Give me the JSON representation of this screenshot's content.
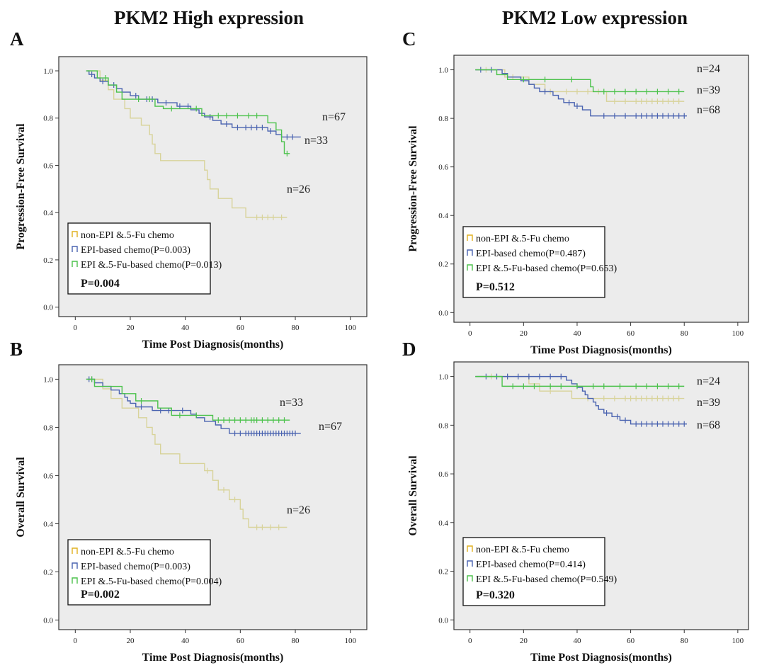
{
  "figure": {
    "column_titles": [
      "PKM2 High expression",
      "PKM2 Low expression"
    ]
  },
  "colors": {
    "non_epi": "#d8d39a",
    "epi": "#4a63b0",
    "epi_5fu": "#4cc24c",
    "legend_icon_non_epi": "#e0b020",
    "plot_bg": "#ececec"
  },
  "chart_data": [
    {
      "panel": "A",
      "type": "line",
      "ylabel": "Progression-Free Survival",
      "xlabel": "Time Post Diagnosis(months)",
      "xlim": [
        -6,
        106
      ],
      "ylim": [
        -0.04,
        1.06
      ],
      "xticks": [
        "0",
        "20",
        "40",
        "60",
        "80",
        "100"
      ],
      "yticks": [
        "0.0",
        "0.2",
        "0.4",
        "0.6",
        "0.8",
        "1.0"
      ],
      "legend": {
        "placement": "bottom-left",
        "entries": [
          "non-EPI &.5-Fu chemo",
          "EPI-based chemo(P=0.003)",
          "EPI &.5-Fu-based chemo(P=0.013)"
        ],
        "p_value": "P=0.004"
      },
      "series": [
        {
          "key": "non_epi",
          "end_label": "n=26",
          "steps": [
            [
              4,
              1.0
            ],
            [
              9,
              0.96
            ],
            [
              12,
              0.92
            ],
            [
              14,
              0.88
            ],
            [
              18,
              0.84
            ],
            [
              20,
              0.8
            ],
            [
              24,
              0.77
            ],
            [
              27,
              0.73
            ],
            [
              28,
              0.69
            ],
            [
              29,
              0.65
            ],
            [
              31,
              0.62
            ],
            [
              47,
              0.58
            ],
            [
              48,
              0.54
            ],
            [
              49,
              0.5
            ],
            [
              52,
              0.46
            ],
            [
              57,
              0.42
            ],
            [
              62,
              0.38
            ]
          ],
          "end": 77,
          "censors": [
            66,
            68,
            70,
            72,
            75
          ]
        },
        {
          "key": "epi",
          "end_label": "n=67",
          "steps": [
            [
              4,
              1.0
            ],
            [
              5,
              0.985
            ],
            [
              7,
              0.97
            ],
            [
              9,
              0.955
            ],
            [
              12,
              0.94
            ],
            [
              15,
              0.925
            ],
            [
              17,
              0.91
            ],
            [
              20,
              0.895
            ],
            [
              23,
              0.88
            ],
            [
              30,
              0.865
            ],
            [
              37,
              0.85
            ],
            [
              42,
              0.835
            ],
            [
              45,
              0.82
            ],
            [
              47,
              0.805
            ],
            [
              50,
              0.79
            ],
            [
              53,
              0.775
            ],
            [
              57,
              0.76
            ],
            [
              70,
              0.745
            ],
            [
              73,
              0.73
            ],
            [
              75,
              0.72
            ]
          ],
          "end": 82,
          "censors": [
            6,
            10,
            14,
            22,
            26,
            28,
            33,
            38,
            41,
            49,
            55,
            59,
            62,
            64,
            66,
            68,
            71,
            77,
            79
          ]
        },
        {
          "key": "epi_5fu",
          "end_label": "n=33",
          "steps": [
            [
              4,
              1.0
            ],
            [
              8,
              0.97
            ],
            [
              12,
              0.94
            ],
            [
              15,
              0.91
            ],
            [
              17,
              0.88
            ],
            [
              29,
              0.85
            ],
            [
              32,
              0.84
            ],
            [
              46,
              0.81
            ],
            [
              70,
              0.78
            ],
            [
              73,
              0.75
            ],
            [
              75,
              0.7
            ],
            [
              76,
              0.65
            ]
          ],
          "end": 78,
          "censors": [
            11,
            23,
            27,
            35,
            44,
            52,
            55,
            59,
            63,
            66,
            77
          ]
        }
      ]
    },
    {
      "panel": "B",
      "type": "line",
      "ylabel": "Overall Survival",
      "xlabel": "Time Post Diagnosis(months)",
      "xlim": [
        -6,
        106
      ],
      "ylim": [
        -0.04,
        1.06
      ],
      "xticks": [
        "0",
        "20",
        "40",
        "60",
        "80",
        "100"
      ],
      "yticks": [
        "0.0",
        "0.2",
        "0.4",
        "0.6",
        "0.8",
        "1.0"
      ],
      "legend": {
        "placement": "bottom-left",
        "entries": [
          "non-EPI &.5-Fu chemo",
          "EPI-based chemo(P=0.003)",
          "EPI &.5-Fu-based chemo(P=0.004)"
        ],
        "p_value": "P=0.002"
      },
      "series": [
        {
          "key": "non_epi",
          "end_label": "n=26",
          "steps": [
            [
              5,
              1.0
            ],
            [
              10,
              0.96
            ],
            [
              13,
              0.92
            ],
            [
              17,
              0.88
            ],
            [
              23,
              0.84
            ],
            [
              26,
              0.8
            ],
            [
              28,
              0.77
            ],
            [
              29,
              0.73
            ],
            [
              31,
              0.69
            ],
            [
              38,
              0.65
            ],
            [
              47,
              0.62
            ],
            [
              50,
              0.58
            ],
            [
              52,
              0.54
            ],
            [
              56,
              0.5
            ],
            [
              60,
              0.46
            ],
            [
              61,
              0.42
            ],
            [
              63,
              0.385
            ]
          ],
          "end": 77,
          "censors": [
            48,
            54,
            58,
            66,
            68,
            71,
            74
          ]
        },
        {
          "key": "epi",
          "end_label": "n=67",
          "steps": [
            [
              4,
              1.0
            ],
            [
              7,
              0.985
            ],
            [
              10,
              0.97
            ],
            [
              13,
              0.955
            ],
            [
              16,
              0.94
            ],
            [
              18,
              0.925
            ],
            [
              19,
              0.91
            ],
            [
              20,
              0.9
            ],
            [
              22,
              0.885
            ],
            [
              28,
              0.87
            ],
            [
              42,
              0.855
            ],
            [
              44,
              0.84
            ],
            [
              47,
              0.825
            ],
            [
              51,
              0.81
            ],
            [
              53,
              0.795
            ],
            [
              56,
              0.775
            ]
          ],
          "end": 82,
          "censors": [
            5,
            6,
            24,
            31,
            34,
            39,
            58,
            60,
            62,
            63,
            64,
            65,
            66,
            67,
            68,
            69,
            70,
            71,
            72,
            73,
            74,
            75,
            76,
            77,
            78,
            79,
            80
          ]
        },
        {
          "key": "epi_5fu",
          "end_label": "n=33",
          "steps": [
            [
              4,
              1.0
            ],
            [
              7,
              0.97
            ],
            [
              17,
              0.94
            ],
            [
              22,
              0.91
            ],
            [
              30,
              0.88
            ],
            [
              35,
              0.85
            ],
            [
              50,
              0.83
            ]
          ],
          "end": 78,
          "censors": [
            6,
            24,
            38,
            44,
            52,
            54,
            56,
            58,
            60,
            62,
            64,
            65,
            66,
            68,
            70,
            72,
            74,
            76
          ]
        }
      ]
    },
    {
      "panel": "C",
      "type": "line",
      "ylabel": "Progression-Free Survival",
      "xlabel": "Time Post Diagnosis(months)",
      "xlim": [
        -6,
        104
      ],
      "ylim": [
        -0.04,
        1.06
      ],
      "xticks": [
        "0",
        "20",
        "40",
        "60",
        "80",
        "100"
      ],
      "yticks": [
        "0.0",
        "0.2",
        "0.4",
        "0.6",
        "0.8",
        "1.0"
      ],
      "legend": {
        "placement": "bottom-left",
        "entries": [
          "non-EPI &.5-Fu chemo",
          "EPI-based chemo(P=0.487)",
          "EPI &.5-Fu-based chemo(P=0.653)"
        ],
        "p_value": "P=0.512"
      },
      "series": [
        {
          "key": "non_epi",
          "end_label": "n=39",
          "steps": [
            [
              2,
              1.0
            ],
            [
              13,
              0.97
            ],
            [
              22,
              0.94
            ],
            [
              28,
              0.91
            ],
            [
              51,
              0.87
            ]
          ],
          "end": 80,
          "censors": [
            6,
            16,
            30,
            36,
            40,
            44,
            48,
            54,
            58,
            62,
            64,
            66,
            68,
            70,
            72,
            74,
            76,
            78
          ]
        },
        {
          "key": "epi",
          "end_label": "n=68",
          "steps": [
            [
              2,
              1.0
            ],
            [
              12,
              0.985
            ],
            [
              14,
              0.97
            ],
            [
              19,
              0.955
            ],
            [
              22,
              0.94
            ],
            [
              24,
              0.925
            ],
            [
              26,
              0.91
            ],
            [
              31,
              0.895
            ],
            [
              33,
              0.88
            ],
            [
              35,
              0.865
            ],
            [
              39,
              0.85
            ],
            [
              42,
              0.835
            ],
            [
              45,
              0.81
            ]
          ],
          "end": 81,
          "censors": [
            4,
            8,
            28,
            37,
            40,
            50,
            54,
            58,
            62,
            64,
            66,
            68,
            70,
            72,
            74,
            76,
            78,
            80
          ]
        },
        {
          "key": "epi_5fu",
          "end_label": "n=24",
          "steps": [
            [
              2,
              1.0
            ],
            [
              10,
              0.98
            ],
            [
              14,
              0.96
            ],
            [
              45,
              0.93
            ],
            [
              46,
              0.91
            ]
          ],
          "end": 80,
          "censors": [
            20,
            28,
            38,
            50,
            54,
            58,
            62,
            66,
            70,
            74,
            78
          ]
        }
      ]
    },
    {
      "panel": "D",
      "type": "line",
      "ylabel": "Overall Survival",
      "xlabel": "Time Post Diagnosis(months)",
      "xlim": [
        -6,
        104
      ],
      "ylim": [
        -0.04,
        1.06
      ],
      "xticks": [
        "0",
        "20",
        "40",
        "60",
        "80",
        "100"
      ],
      "yticks": [
        "0.0",
        "0.2",
        "0.4",
        "0.6",
        "0.8",
        "1.0"
      ],
      "legend": {
        "placement": "bottom-left",
        "entries": [
          "non-EPI &.5-Fu chemo",
          "EPI-based chemo(P=0.414)",
          "EPI &.5-Fu-based chemo(P=0.549)"
        ],
        "p_value": "P=0.320"
      },
      "series": [
        {
          "key": "non_epi",
          "end_label": "n=39",
          "steps": [
            [
              2,
              1.0
            ],
            [
              22,
              0.97
            ],
            [
              26,
              0.94
            ],
            [
              38,
              0.91
            ]
          ],
          "end": 80,
          "censors": [
            8,
            14,
            30,
            44,
            50,
            54,
            58,
            60,
            62,
            64,
            66,
            68,
            70,
            72,
            74,
            76,
            78
          ]
        },
        {
          "key": "epi",
          "end_label": "n=68",
          "steps": [
            [
              2,
              1.0
            ],
            [
              36,
              0.985
            ],
            [
              38,
              0.97
            ],
            [
              40,
              0.955
            ],
            [
              42,
              0.94
            ],
            [
              43,
              0.925
            ],
            [
              44,
              0.91
            ],
            [
              46,
              0.895
            ],
            [
              47,
              0.88
            ],
            [
              48,
              0.865
            ],
            [
              50,
              0.85
            ],
            [
              53,
              0.835
            ],
            [
              56,
              0.82
            ],
            [
              60,
              0.805
            ]
          ],
          "end": 81,
          "censors": [
            6,
            10,
            14,
            18,
            22,
            26,
            30,
            34,
            51,
            55,
            58,
            62,
            64,
            66,
            68,
            70,
            72,
            74,
            76,
            78,
            80
          ]
        },
        {
          "key": "epi_5fu",
          "end_label": "n=24",
          "steps": [
            [
              2,
              1.0
            ],
            [
              12,
              0.96
            ]
          ],
          "end": 80,
          "censors": [
            16,
            20,
            24,
            30,
            34,
            40,
            46,
            50,
            56,
            62,
            66,
            70,
            74,
            78
          ]
        }
      ]
    }
  ]
}
